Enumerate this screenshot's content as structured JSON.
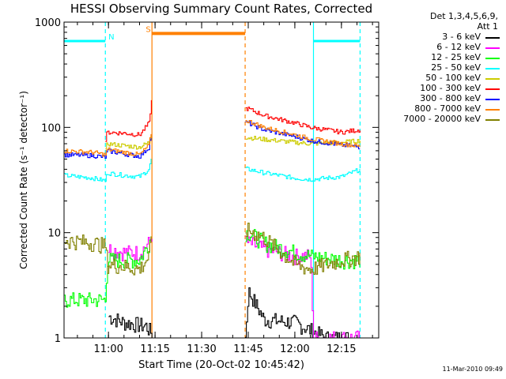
{
  "chart_data": {
    "type": "line",
    "title": "HESSI Observing Summary Count Rates, Corrected",
    "xlabel": "Start Time (20-Oct-02 10:45:42)",
    "ylabel": "Corrected Count Rate (s⁻¹ detector⁻¹)",
    "yscale": "log",
    "ylim": [
      1,
      1000
    ],
    "xlim": [
      "10:45:42",
      "12:27:00"
    ],
    "x_ticks": [
      "11:00",
      "11:15",
      "11:30",
      "11:45",
      "12:00",
      "12:15"
    ],
    "y_ticks": [
      "1",
      "10",
      "100",
      "1000"
    ],
    "footer": "11-Mar-2010 09:49",
    "legend_header": [
      "Det 1,3,4,5,6,9,",
      "Att 1"
    ],
    "legend_position": "right",
    "series": [
      {
        "name": "3 - 6 keV",
        "color": "#000000",
        "x": [
          "11:00",
          "11:05",
          "11:12",
          "11:15",
          "11:44",
          "11:45",
          "11:50",
          "12:00",
          "12:10",
          "12:20"
        ],
        "y": [
          1.6,
          1.4,
          1.3,
          1.0,
          1.0,
          2.8,
          1.5,
          1.4,
          1.0,
          1.0
        ]
      },
      {
        "name": "6 - 12 keV",
        "color": "#ff00ff",
        "x": [
          "11:00",
          "11:05",
          "11:10",
          "11:13",
          "11:14",
          "11:45",
          "11:50",
          "12:00",
          "12:05",
          "12:06",
          "12:10",
          "12:21"
        ],
        "y": [
          7.0,
          6.5,
          6.5,
          8.0,
          9.5,
          8.0,
          7.0,
          6.0,
          6.0,
          1.0,
          1.0,
          1.0
        ]
      },
      {
        "name": "12 - 25 keV",
        "color": "#00ff00",
        "x": [
          "10:45:42",
          "10:59",
          "10:59:30",
          "11:05",
          "11:10",
          "11:13",
          "11:14",
          "11:45",
          "11:50",
          "12:00",
          "12:05",
          "12:15",
          "12:21"
        ],
        "y": [
          2.3,
          2.3,
          5.5,
          5.5,
          5.5,
          8.0,
          10.0,
          10.0,
          8.0,
          6.5,
          6.0,
          5.5,
          5.5
        ]
      },
      {
        "name": "25 - 50 keV",
        "color": "#00ffff",
        "x": [
          "10:45:42",
          "10:50",
          "10:55",
          "10:59",
          "10:59:30",
          "11:05",
          "11:10",
          "11:13",
          "11:14",
          "11:45",
          "11:50",
          "12:00",
          "12:05",
          "12:15",
          "12:21"
        ],
        "y": [
          35,
          34,
          33,
          31,
          37,
          35,
          34,
          40,
          55,
          40,
          37,
          33,
          32,
          34,
          40
        ]
      },
      {
        "name": "50 - 100 keV",
        "color": "#cccc00",
        "x": [
          "10:59",
          "10:59:30",
          "11:05",
          "11:10",
          "11:13",
          "11:14",
          "11:45",
          "11:50",
          "12:00",
          "12:05",
          "12:15",
          "12:21"
        ],
        "y": [
          60,
          70,
          67,
          65,
          72,
          90,
          80,
          77,
          72,
          70,
          72,
          75
        ]
      },
      {
        "name": "100 - 300 keV",
        "color": "#ff0000",
        "x": [
          "10:59",
          "10:59:30",
          "11:05",
          "11:10",
          "11:13",
          "11:14",
          "11:45",
          "11:50",
          "12:00",
          "12:05",
          "12:15",
          "12:21"
        ],
        "y": [
          75,
          90,
          88,
          85,
          110,
          200,
          150,
          130,
          110,
          100,
          90,
          95
        ]
      },
      {
        "name": "300 - 800 keV",
        "color": "#0000ff",
        "x": [
          "10:45:42",
          "10:55",
          "10:59",
          "10:59:30",
          "11:05",
          "11:10",
          "11:13",
          "11:14",
          "11:45",
          "11:50",
          "12:00",
          "12:05",
          "12:15",
          "12:21"
        ],
        "y": [
          55,
          54,
          52,
          60,
          56,
          53,
          65,
          100,
          110,
          95,
          82,
          75,
          68,
          65
        ]
      },
      {
        "name": "800 - 7000 keV",
        "color": "#ff8000",
        "x": [
          "10:45:42",
          "10:55",
          "10:59",
          "10:59:30",
          "11:05",
          "11:10",
          "11:13",
          "11:14",
          "11:45",
          "11:50",
          "12:00",
          "12:05",
          "12:15",
          "12:21"
        ],
        "y": [
          60,
          58,
          55,
          62,
          58,
          55,
          68,
          100,
          115,
          100,
          85,
          78,
          70,
          66
        ]
      },
      {
        "name": "7000 - 20000 keV",
        "color": "#808000",
        "x": [
          "10:45:42",
          "10:55",
          "10:59",
          "10:59:30",
          "11:05",
          "11:10",
          "11:13",
          "11:14",
          "11:45",
          "11:50",
          "12:00",
          "12:05",
          "12:15",
          "12:21"
        ],
        "y": [
          8.5,
          8.0,
          7.5,
          5.0,
          4.8,
          4.5,
          6.0,
          9.5,
          10.5,
          9.0,
          5.0,
          4.5,
          5.5,
          6.0
        ]
      }
    ],
    "segments": [
      {
        "label": "",
        "color": "#00ffff",
        "x_start": "10:45:42",
        "x_end": "10:59",
        "y": 660
      },
      {
        "label": "",
        "color": "#00ffff",
        "x_start": "12:06",
        "x_end": "12:21",
        "y": 660
      },
      {
        "label": "",
        "color": "#ff8000",
        "x_start": "11:14",
        "x_end": "11:44",
        "y": 780
      }
    ],
    "annotations": [
      {
        "text": "N",
        "color": "#00ffff",
        "x": "11:00",
        "y": 660
      },
      {
        "text": "S",
        "color": "#ff8000",
        "x": "11:12",
        "y": 780
      }
    ],
    "vertical_markers": [
      {
        "x": "10:59",
        "color": "#00ffff",
        "style": "dashed"
      },
      {
        "x": "11:14",
        "color": "#ff8000",
        "style": "solid"
      },
      {
        "x": "11:44",
        "color": "#ff8000",
        "style": "dashed"
      },
      {
        "x": "12:06",
        "color": "#00ffff",
        "style": "solid"
      },
      {
        "x": "12:21",
        "color": "#00ffff",
        "style": "dashed"
      }
    ],
    "data_gap": [
      "11:14",
      "11:44"
    ]
  }
}
